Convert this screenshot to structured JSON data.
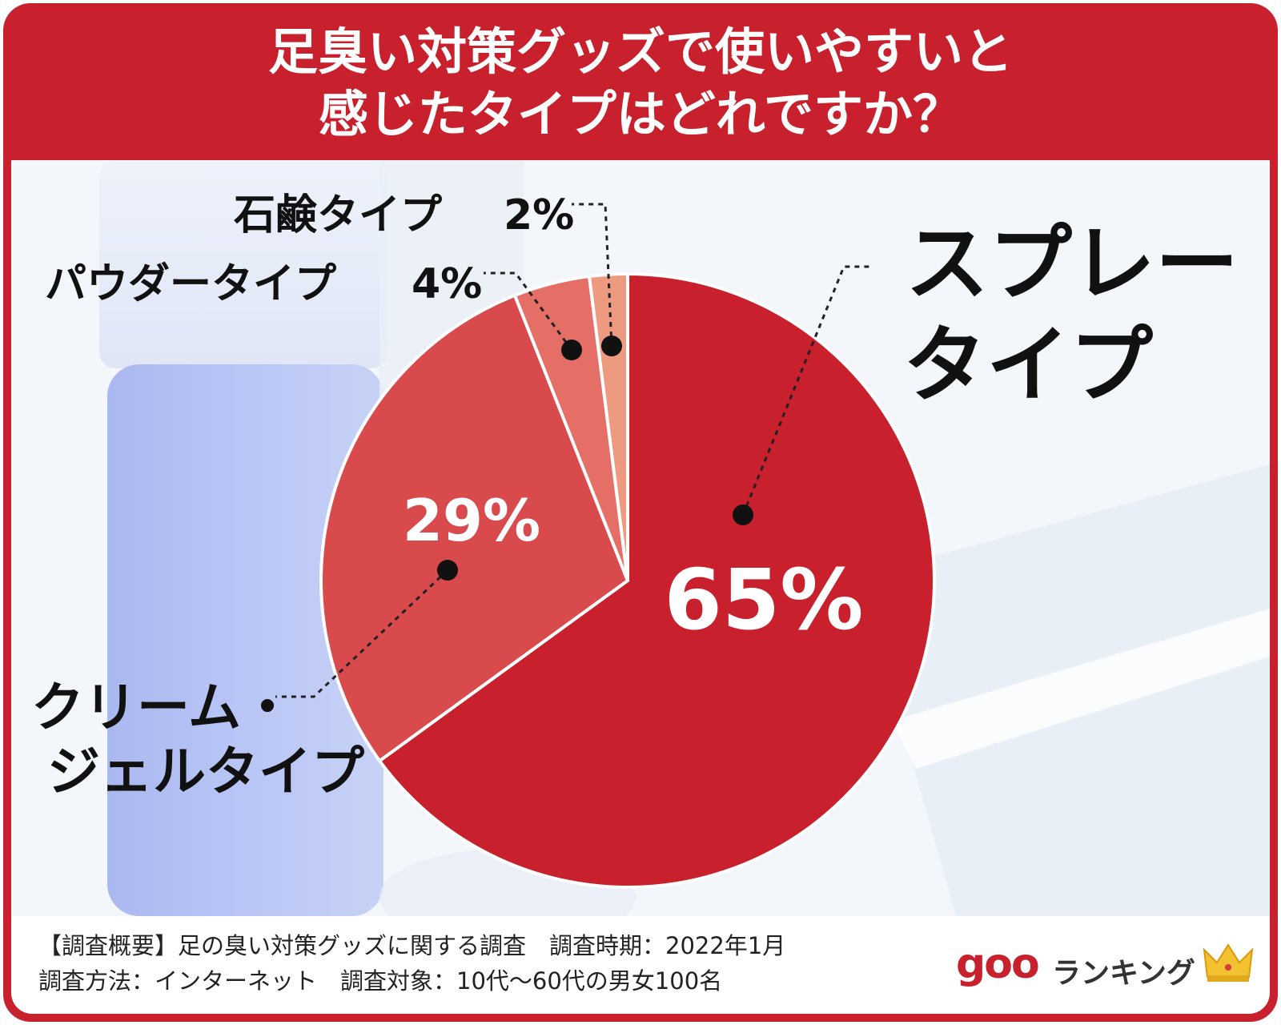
{
  "title": {
    "line1": "足臭い対策グッズで使いやすいと",
    "line2": "感じたタイプはどれですか？"
  },
  "chart_data": {
    "type": "pie",
    "title": "足臭い対策グッズで使いやすいと感じたタイプはどれですか？",
    "slices": [
      {
        "label_line1": "スプレー",
        "label_line2": "タイプ",
        "value": 65,
        "value_text": "65%",
        "color": "#c8202c"
      },
      {
        "label_line1": "クリーム・",
        "label_line2": "ジェルタイプ",
        "value": 29,
        "value_text": "29%",
        "color": "#d94a4d"
      },
      {
        "label_line1": "パウダータイプ",
        "label_line2": "",
        "value": 4,
        "value_text": "4%",
        "color": "#e56f66"
      },
      {
        "label_line1": "石鹸タイプ",
        "label_line2": "",
        "value": 2,
        "value_text": "2%",
        "color": "#ee9a80"
      }
    ]
  },
  "footer": {
    "line1": "【調査概要】足の臭い対策グッズに関する調査　調査時期：2022年1月",
    "line2": "調査方法：インターネット　調査対象：10代〜60代の男女100名"
  },
  "logo": {
    "goo": "goo",
    "ranking": "ランキング",
    "crown_icon": "crown-icon"
  }
}
